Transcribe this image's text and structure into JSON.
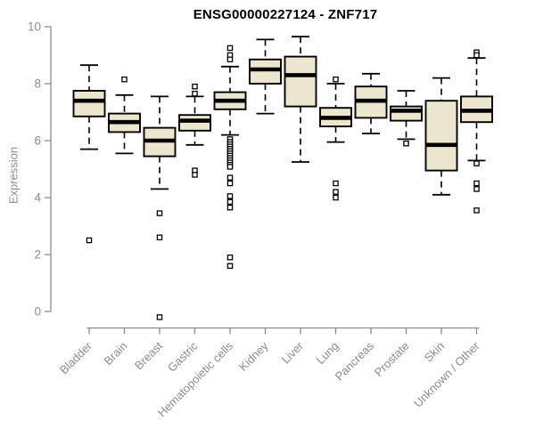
{
  "chart_data": {
    "type": "boxplot",
    "title": "ENSG00000227124 - ZNF717",
    "ylabel": "Expression",
    "xlabel": "",
    "ylim": [
      0,
      10
    ],
    "yticks": [
      0,
      2,
      4,
      6,
      8,
      10
    ],
    "grid": false,
    "legend": "none",
    "axis_color": "#8c8c8c",
    "box_fill": "#ede6ce",
    "box_stroke": "#000000",
    "whisker_style": "dashed",
    "outlier_marker": "open-square",
    "categories": [
      "Bladder",
      "Brain",
      "Breast",
      "Gastric",
      "Hematopoietic cells",
      "Kidney",
      "Liver",
      "Lung",
      "Pancreas",
      "Prostate",
      "Skin",
      "Unknown / Other"
    ],
    "series": [
      {
        "name": "Bladder",
        "whisker_low": 5.7,
        "q1": 6.85,
        "median": 7.4,
        "q3": 7.75,
        "whisker_high": 8.65,
        "outliers": [
          2.5
        ]
      },
      {
        "name": "Brain",
        "whisker_low": 5.55,
        "q1": 6.3,
        "median": 6.65,
        "q3": 6.95,
        "whisker_high": 7.6,
        "outliers": [
          8.15
        ]
      },
      {
        "name": "Breast",
        "whisker_low": 4.3,
        "q1": 5.45,
        "median": 6.0,
        "q3": 6.45,
        "whisker_high": 7.55,
        "outliers": [
          3.45,
          2.6,
          -0.2
        ]
      },
      {
        "name": "Gastric",
        "whisker_low": 5.85,
        "q1": 6.35,
        "median": 6.7,
        "q3": 6.9,
        "whisker_high": 7.55,
        "outliers": [
          7.9,
          7.65,
          4.95,
          4.8
        ]
      },
      {
        "name": "Hematopoietic cells",
        "whisker_low": 6.2,
        "q1": 7.1,
        "median": 7.4,
        "q3": 7.7,
        "whisker_high": 8.6,
        "outliers": [
          9.25,
          9.0,
          8.85,
          6.05,
          5.95,
          5.87,
          5.79,
          5.71,
          5.63,
          5.55,
          5.47,
          5.39,
          5.31,
          5.23,
          5.15,
          5.08,
          4.7,
          4.5,
          4.05,
          3.85,
          3.65,
          1.9,
          1.6
        ]
      },
      {
        "name": "Kidney",
        "whisker_low": 6.95,
        "q1": 8.0,
        "median": 8.5,
        "q3": 8.85,
        "whisker_high": 9.55,
        "outliers": []
      },
      {
        "name": "Liver",
        "whisker_low": 5.25,
        "q1": 7.2,
        "median": 8.3,
        "q3": 8.95,
        "whisker_high": 9.65,
        "outliers": []
      },
      {
        "name": "Lung",
        "whisker_low": 5.95,
        "q1": 6.5,
        "median": 6.8,
        "q3": 7.15,
        "whisker_high": 8.0,
        "outliers": [
          8.15,
          4.5,
          4.2,
          4.0
        ]
      },
      {
        "name": "Pancreas",
        "whisker_low": 6.25,
        "q1": 6.8,
        "median": 7.4,
        "q3": 7.9,
        "whisker_high": 8.35,
        "outliers": []
      },
      {
        "name": "Prostate",
        "whisker_low": 6.05,
        "q1": 6.7,
        "median": 7.05,
        "q3": 7.2,
        "whisker_high": 7.75,
        "outliers": [
          5.9
        ]
      },
      {
        "name": "Skin",
        "whisker_low": 4.1,
        "q1": 4.95,
        "median": 5.85,
        "q3": 7.4,
        "whisker_high": 8.2,
        "outliers": []
      },
      {
        "name": "Unknown / Other",
        "whisker_low": 5.3,
        "q1": 6.65,
        "median": 7.05,
        "q3": 7.55,
        "whisker_high": 8.9,
        "outliers": [
          9.1,
          9.0,
          5.2,
          4.5,
          4.3,
          3.55
        ]
      }
    ]
  }
}
